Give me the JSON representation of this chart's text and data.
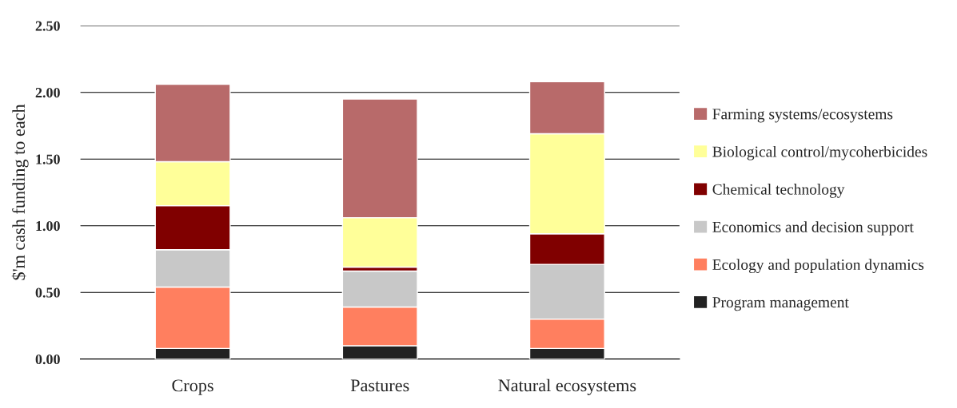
{
  "chart_data": {
    "type": "bar",
    "stacked": true,
    "ylabel": "$'m cash funding to each",
    "categories": [
      "Crops",
      "Pastures",
      "Natural ecosystems"
    ],
    "series": [
      {
        "name": "Program management",
        "color": "#222222",
        "values": [
          0.08,
          0.1,
          0.08
        ]
      },
      {
        "name": "Ecology and population dynamics",
        "color": "#ff7f5f",
        "values": [
          0.46,
          0.29,
          0.22
        ]
      },
      {
        "name": "Economics and decision support",
        "color": "#c8c8c8",
        "values": [
          0.28,
          0.27,
          0.41
        ]
      },
      {
        "name": "Chemical technology",
        "color": "#800000",
        "values": [
          0.33,
          0.03,
          0.23
        ]
      },
      {
        "name": "Biological control/mycoherbicides",
        "color": "#ffff99",
        "values": [
          0.33,
          0.37,
          0.75
        ]
      },
      {
        "name": "Farming systems/ecosystems",
        "color": "#b86a6a",
        "values": [
          0.58,
          0.89,
          0.39
        ]
      }
    ],
    "ylim": [
      0,
      2.5
    ],
    "yticks": [
      {
        "value": 0,
        "label": "0.00"
      },
      {
        "value": 0.5,
        "label": "0.50"
      },
      {
        "value": 1,
        "label": "1.00"
      },
      {
        "value": 1.5,
        "label": "1.50"
      },
      {
        "value": 2,
        "label": "2.00"
      },
      {
        "value": 2.5,
        "label": "2.50"
      }
    ],
    "grid": "y",
    "legend": "right"
  }
}
